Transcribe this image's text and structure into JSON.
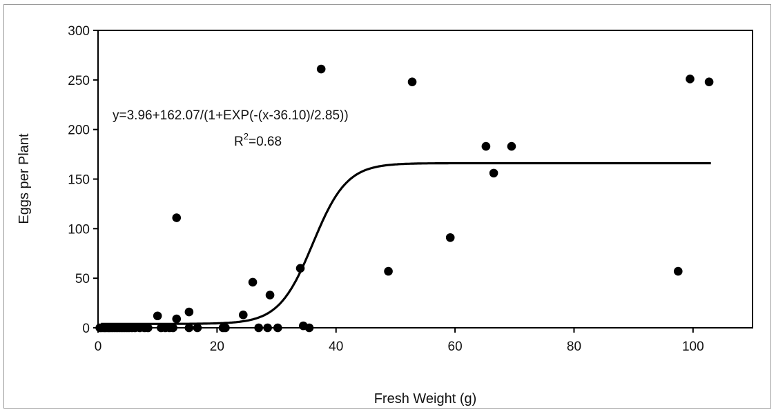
{
  "chart_data": {
    "type": "scatter",
    "title": "",
    "xlabel": "Fresh Weight (g)",
    "ylabel": "Eggs per Plant",
    "xlim": [
      0,
      110
    ],
    "ylim": [
      0,
      300
    ],
    "xticks": [
      0,
      20,
      40,
      60,
      80,
      100
    ],
    "yticks": [
      0,
      50,
      100,
      150,
      200,
      250,
      300
    ],
    "xtick_labels": [
      "0",
      "20",
      "40",
      "60",
      "80",
      "100"
    ],
    "ytick_labels": [
      "0",
      "50",
      "100",
      "150",
      "200",
      "250",
      "300"
    ],
    "grid": false,
    "legend": "none",
    "annotations": {
      "equation": "y=3.96+162.07/(1+EXP(-(x-36.10)/2.85))",
      "r2_prefix": "R",
      "r2_sup": "2",
      "r2_value": "=0.68"
    },
    "fit": {
      "model": "logistic",
      "a": 3.96,
      "b": 162.07,
      "c": 36.1,
      "d": 2.85,
      "x_range": [
        0.5,
        103
      ]
    },
    "points": [
      [
        0.3,
        0
      ],
      [
        0.6,
        0
      ],
      [
        1.0,
        0
      ],
      [
        1.3,
        0
      ],
      [
        1.7,
        0
      ],
      [
        2.0,
        0
      ],
      [
        2.4,
        0
      ],
      [
        2.8,
        0
      ],
      [
        3.2,
        0
      ],
      [
        3.6,
        0
      ],
      [
        4.0,
        0
      ],
      [
        4.4,
        0
      ],
      [
        4.8,
        0
      ],
      [
        5.2,
        0
      ],
      [
        5.7,
        0
      ],
      [
        6.2,
        0
      ],
      [
        7.0,
        0
      ],
      [
        7.8,
        0
      ],
      [
        8.4,
        0
      ],
      [
        10.0,
        12
      ],
      [
        10.6,
        0
      ],
      [
        11.3,
        0
      ],
      [
        12.0,
        0
      ],
      [
        12.6,
        0
      ],
      [
        13.2,
        9
      ],
      [
        13.2,
        111
      ],
      [
        15.3,
        16
      ],
      [
        15.3,
        0
      ],
      [
        16.7,
        0
      ],
      [
        21.0,
        0
      ],
      [
        21.4,
        0
      ],
      [
        24.4,
        13
      ],
      [
        26.0,
        46
      ],
      [
        27.0,
        0
      ],
      [
        28.5,
        0
      ],
      [
        28.9,
        33
      ],
      [
        30.2,
        0
      ],
      [
        34.0,
        60
      ],
      [
        34.5,
        2
      ],
      [
        35.5,
        0
      ],
      [
        37.5,
        261
      ],
      [
        48.8,
        57
      ],
      [
        52.8,
        248
      ],
      [
        59.2,
        91
      ],
      [
        65.2,
        183
      ],
      [
        66.5,
        156
      ],
      [
        69.5,
        183
      ],
      [
        97.5,
        57
      ],
      [
        99.5,
        251
      ],
      [
        102.7,
        248
      ]
    ]
  }
}
